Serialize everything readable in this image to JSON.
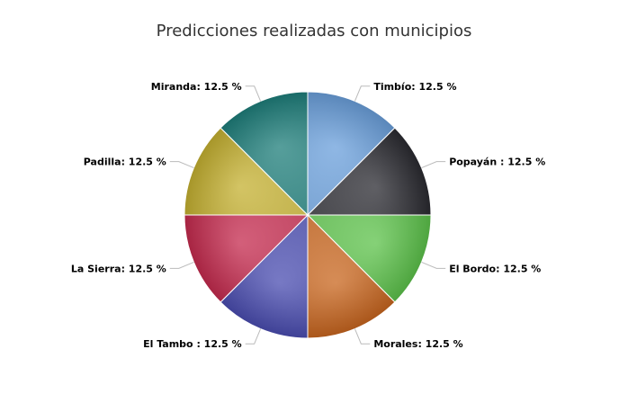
{
  "chart_data": {
    "type": "pie",
    "title": "Predicciones realizadas con municipios",
    "start_angle_deg": 0,
    "direction": "clockwise",
    "slices": [
      {
        "name": "Timbío",
        "value": 12.5,
        "label": "Timbío: 12.5 %",
        "color": "#6a9fdb"
      },
      {
        "name": "Popayán ",
        "value": 12.5,
        "label": "Popayán : 12.5 %",
        "color": "#2a2a30"
      },
      {
        "name": "El Bordo",
        "value": 12.5,
        "label": "El Bordo: 12.5 %",
        "color": "#5cc24a"
      },
      {
        "name": "Morales",
        "value": 12.5,
        "label": "Morales: 12.5 %",
        "color": "#c8651e"
      },
      {
        "name": "El Tambo ",
        "value": 12.5,
        "label": "El Tambo : 12.5 %",
        "color": "#4a4cb0"
      },
      {
        "name": "La Sierra",
        "value": 12.5,
        "label": "La Sierra: 12.5 %",
        "color": "#c42a4e"
      },
      {
        "name": "Padilla",
        "value": 12.5,
        "label": "Padilla: 12.5 %",
        "color": "#c4b030"
      },
      {
        "name": "Miranda",
        "value": 12.5,
        "label": "Miranda: 12.5 %",
        "color": "#1d7e7a"
      }
    ]
  }
}
